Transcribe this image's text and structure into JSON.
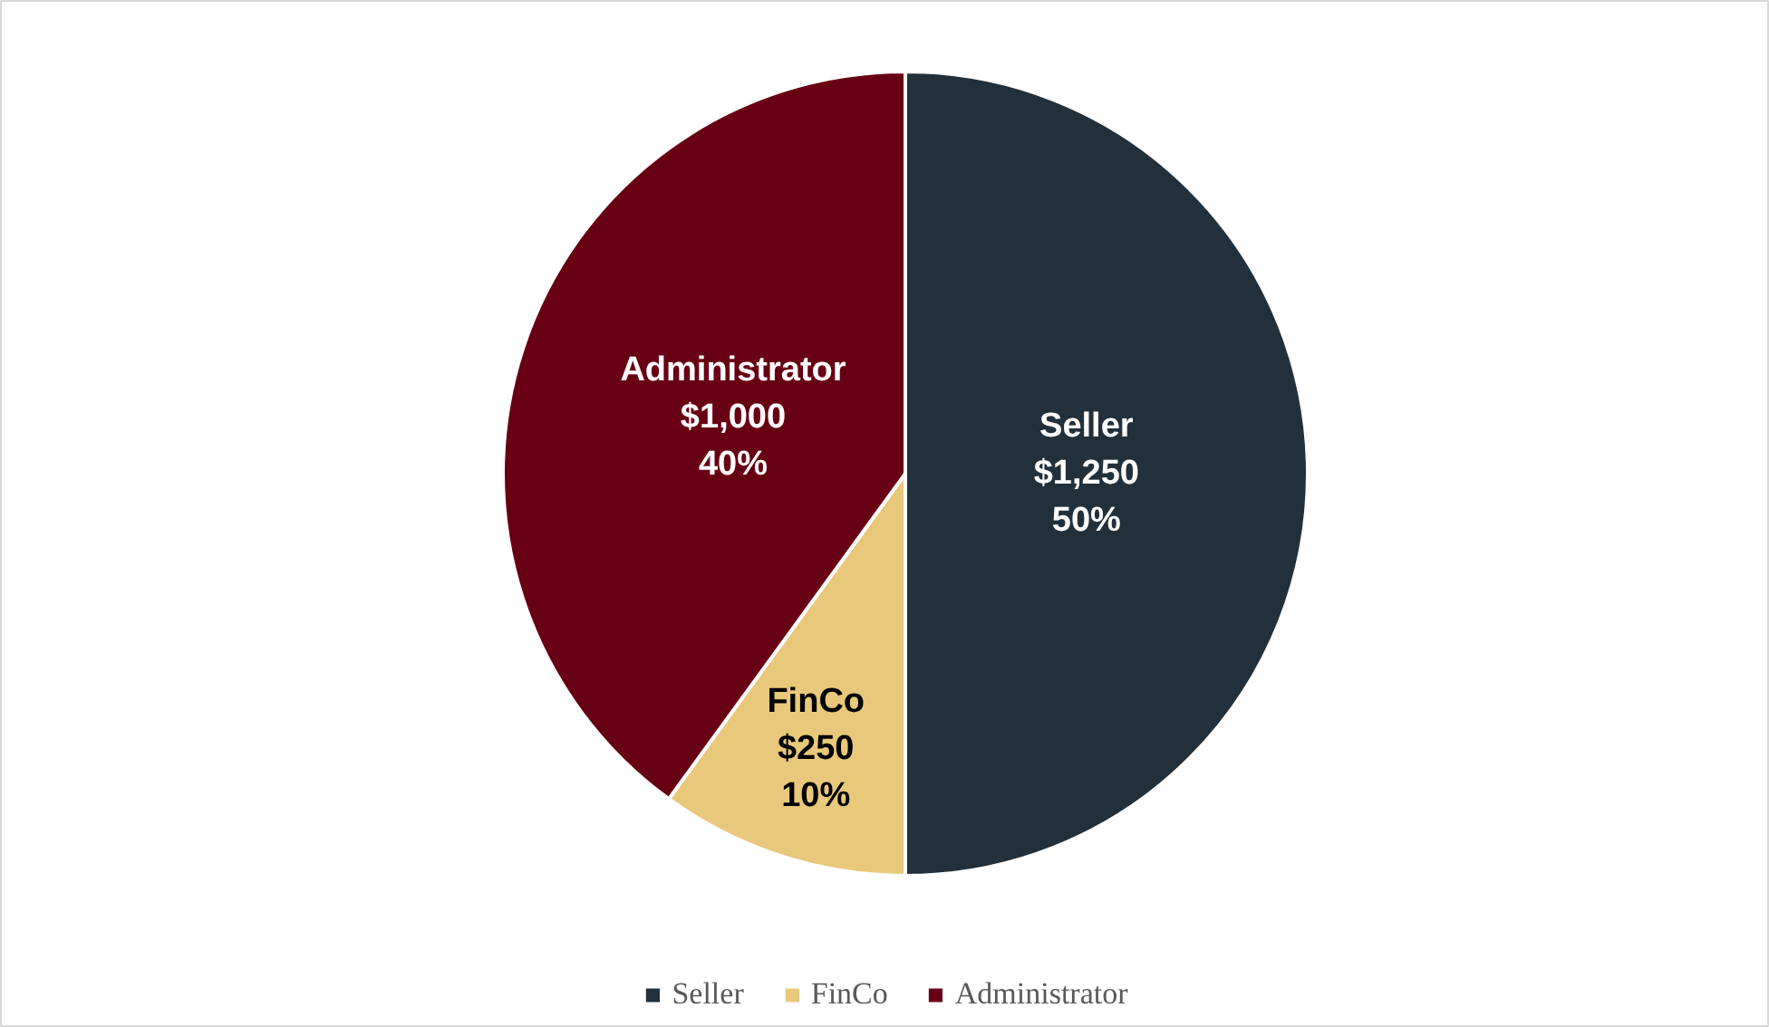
{
  "chart_data": {
    "type": "pie",
    "categories": [
      "Seller",
      "FinCo",
      "Administrator"
    ],
    "values": [
      1250,
      250,
      1000
    ],
    "colors": [
      "#21303a",
      "#e8c87a",
      "#680014"
    ],
    "value_labels": [
      "$1,250\n50%",
      "$250\n10%",
      "$1,000\n40%"
    ],
    "legend": "bottom"
  }
}
